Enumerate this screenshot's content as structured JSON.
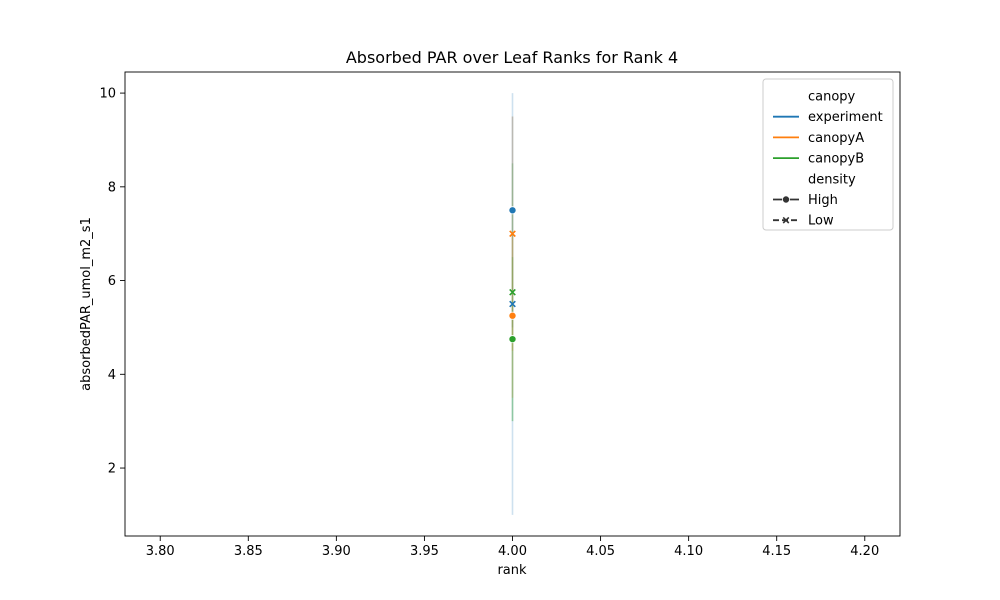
{
  "chart_data": {
    "type": "line",
    "title": "Absorbed PAR over Leaf Ranks for Rank 4",
    "xlabel": "rank",
    "ylabel": "absorbedPAR_umol_m2_s1",
    "xlim": [
      3.78,
      4.22
    ],
    "ylim": [
      0.55,
      10.45
    ],
    "xticks": [
      "3.80",
      "3.85",
      "3.90",
      "3.95",
      "4.00",
      "4.05",
      "4.10",
      "4.15",
      "4.20"
    ],
    "xtick_values": [
      3.8,
      3.85,
      3.9,
      3.95,
      4.0,
      4.05,
      4.1,
      4.15,
      4.2
    ],
    "yticks": [
      "2",
      "4",
      "6",
      "8",
      "10"
    ],
    "ytick_values": [
      2,
      4,
      6,
      8,
      10
    ],
    "grid": false,
    "legend_placement": "upper-right",
    "legend": {
      "hue_title": "canopy",
      "style_title": "density",
      "hue_entries": [
        {
          "label": "experiment",
          "color": "#1f77b4"
        },
        {
          "label": "canopyA",
          "color": "#ff7f0e"
        },
        {
          "label": "canopyB",
          "color": "#2ca02c"
        }
      ],
      "style_entries": [
        {
          "label": "High",
          "marker": "circle",
          "dash": "solid"
        },
        {
          "label": "Low",
          "marker": "x",
          "dash": "dashed"
        }
      ]
    },
    "series": [
      {
        "canopy": "experiment",
        "density": "High",
        "color": "#1f77b4",
        "marker": "circle",
        "x": 4.0,
        "y": 7.5,
        "ci": [
          5.0,
          10.0
        ]
      },
      {
        "canopy": "experiment",
        "density": "Low",
        "color": "#1f77b4",
        "marker": "x",
        "x": 4.0,
        "y": 5.5,
        "ci": [
          1.0,
          9.5
        ]
      },
      {
        "canopy": "canopyA",
        "density": "Low",
        "color": "#ff7f0e",
        "marker": "x",
        "x": 4.0,
        "y": 7.0,
        "ci": [
          4.5,
          9.5
        ]
      },
      {
        "canopy": "canopyB",
        "density": "Low",
        "color": "#2ca02c",
        "marker": "x",
        "x": 4.0,
        "y": 5.75,
        "ci": [
          3.0,
          8.5
        ]
      },
      {
        "canopy": "canopyA",
        "density": "High",
        "color": "#ff7f0e",
        "marker": "circle",
        "x": 4.0,
        "y": 5.25,
        "ci": [
          3.5,
          7.0
        ]
      },
      {
        "canopy": "canopyB",
        "density": "High",
        "color": "#2ca02c",
        "marker": "circle",
        "x": 4.0,
        "y": 4.75,
        "ci": [
          3.0,
          6.5
        ]
      }
    ]
  }
}
